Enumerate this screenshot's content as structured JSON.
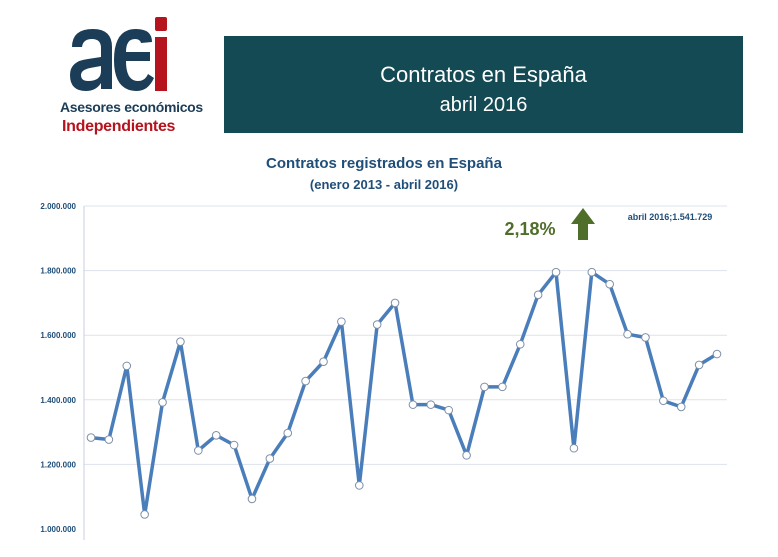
{
  "logo": {
    "mark_text": "aei",
    "line1": "Asesores económicos",
    "line2": "Independientes",
    "colors": {
      "navy": "#1b3d57",
      "red": "#b5131e"
    }
  },
  "banner": {
    "title": "Contratos en España",
    "subtitle": "abril 2016",
    "color": "#144a53"
  },
  "chart_data": {
    "type": "line",
    "title": "Contratos registrados en España",
    "subtitle": "(enero 2013 - abril 2016)",
    "xlabel": "",
    "ylabel": "",
    "ylim": [
      1000000,
      2000000
    ],
    "yticks": [
      "1.000.000",
      "1.200.000",
      "1.400.000",
      "1.600.000",
      "1.800.000",
      "2.000.000"
    ],
    "grid": true,
    "series_color": "#4a7ebb",
    "series": [
      {
        "values": [
          1283000,
          1277000,
          1505000,
          1045000,
          1392000,
          1580000,
          1243000,
          1290000,
          1260000,
          1093000,
          1218000,
          1297000,
          1458000,
          1518000,
          1642000,
          1135000,
          1633000,
          1700000,
          1385000,
          1385000,
          1368000,
          1228000,
          1440000,
          1440000,
          1572000,
          1725000,
          1795000,
          1250000,
          1795000,
          1758000,
          1603000,
          1593000,
          1397000,
          1378000,
          1508000,
          1541729
        ]
      }
    ],
    "annotations": {
      "variation": "2,18%",
      "variation_color": "#4f6e2a",
      "last_point": "abril 2016;1.541.729"
    }
  }
}
